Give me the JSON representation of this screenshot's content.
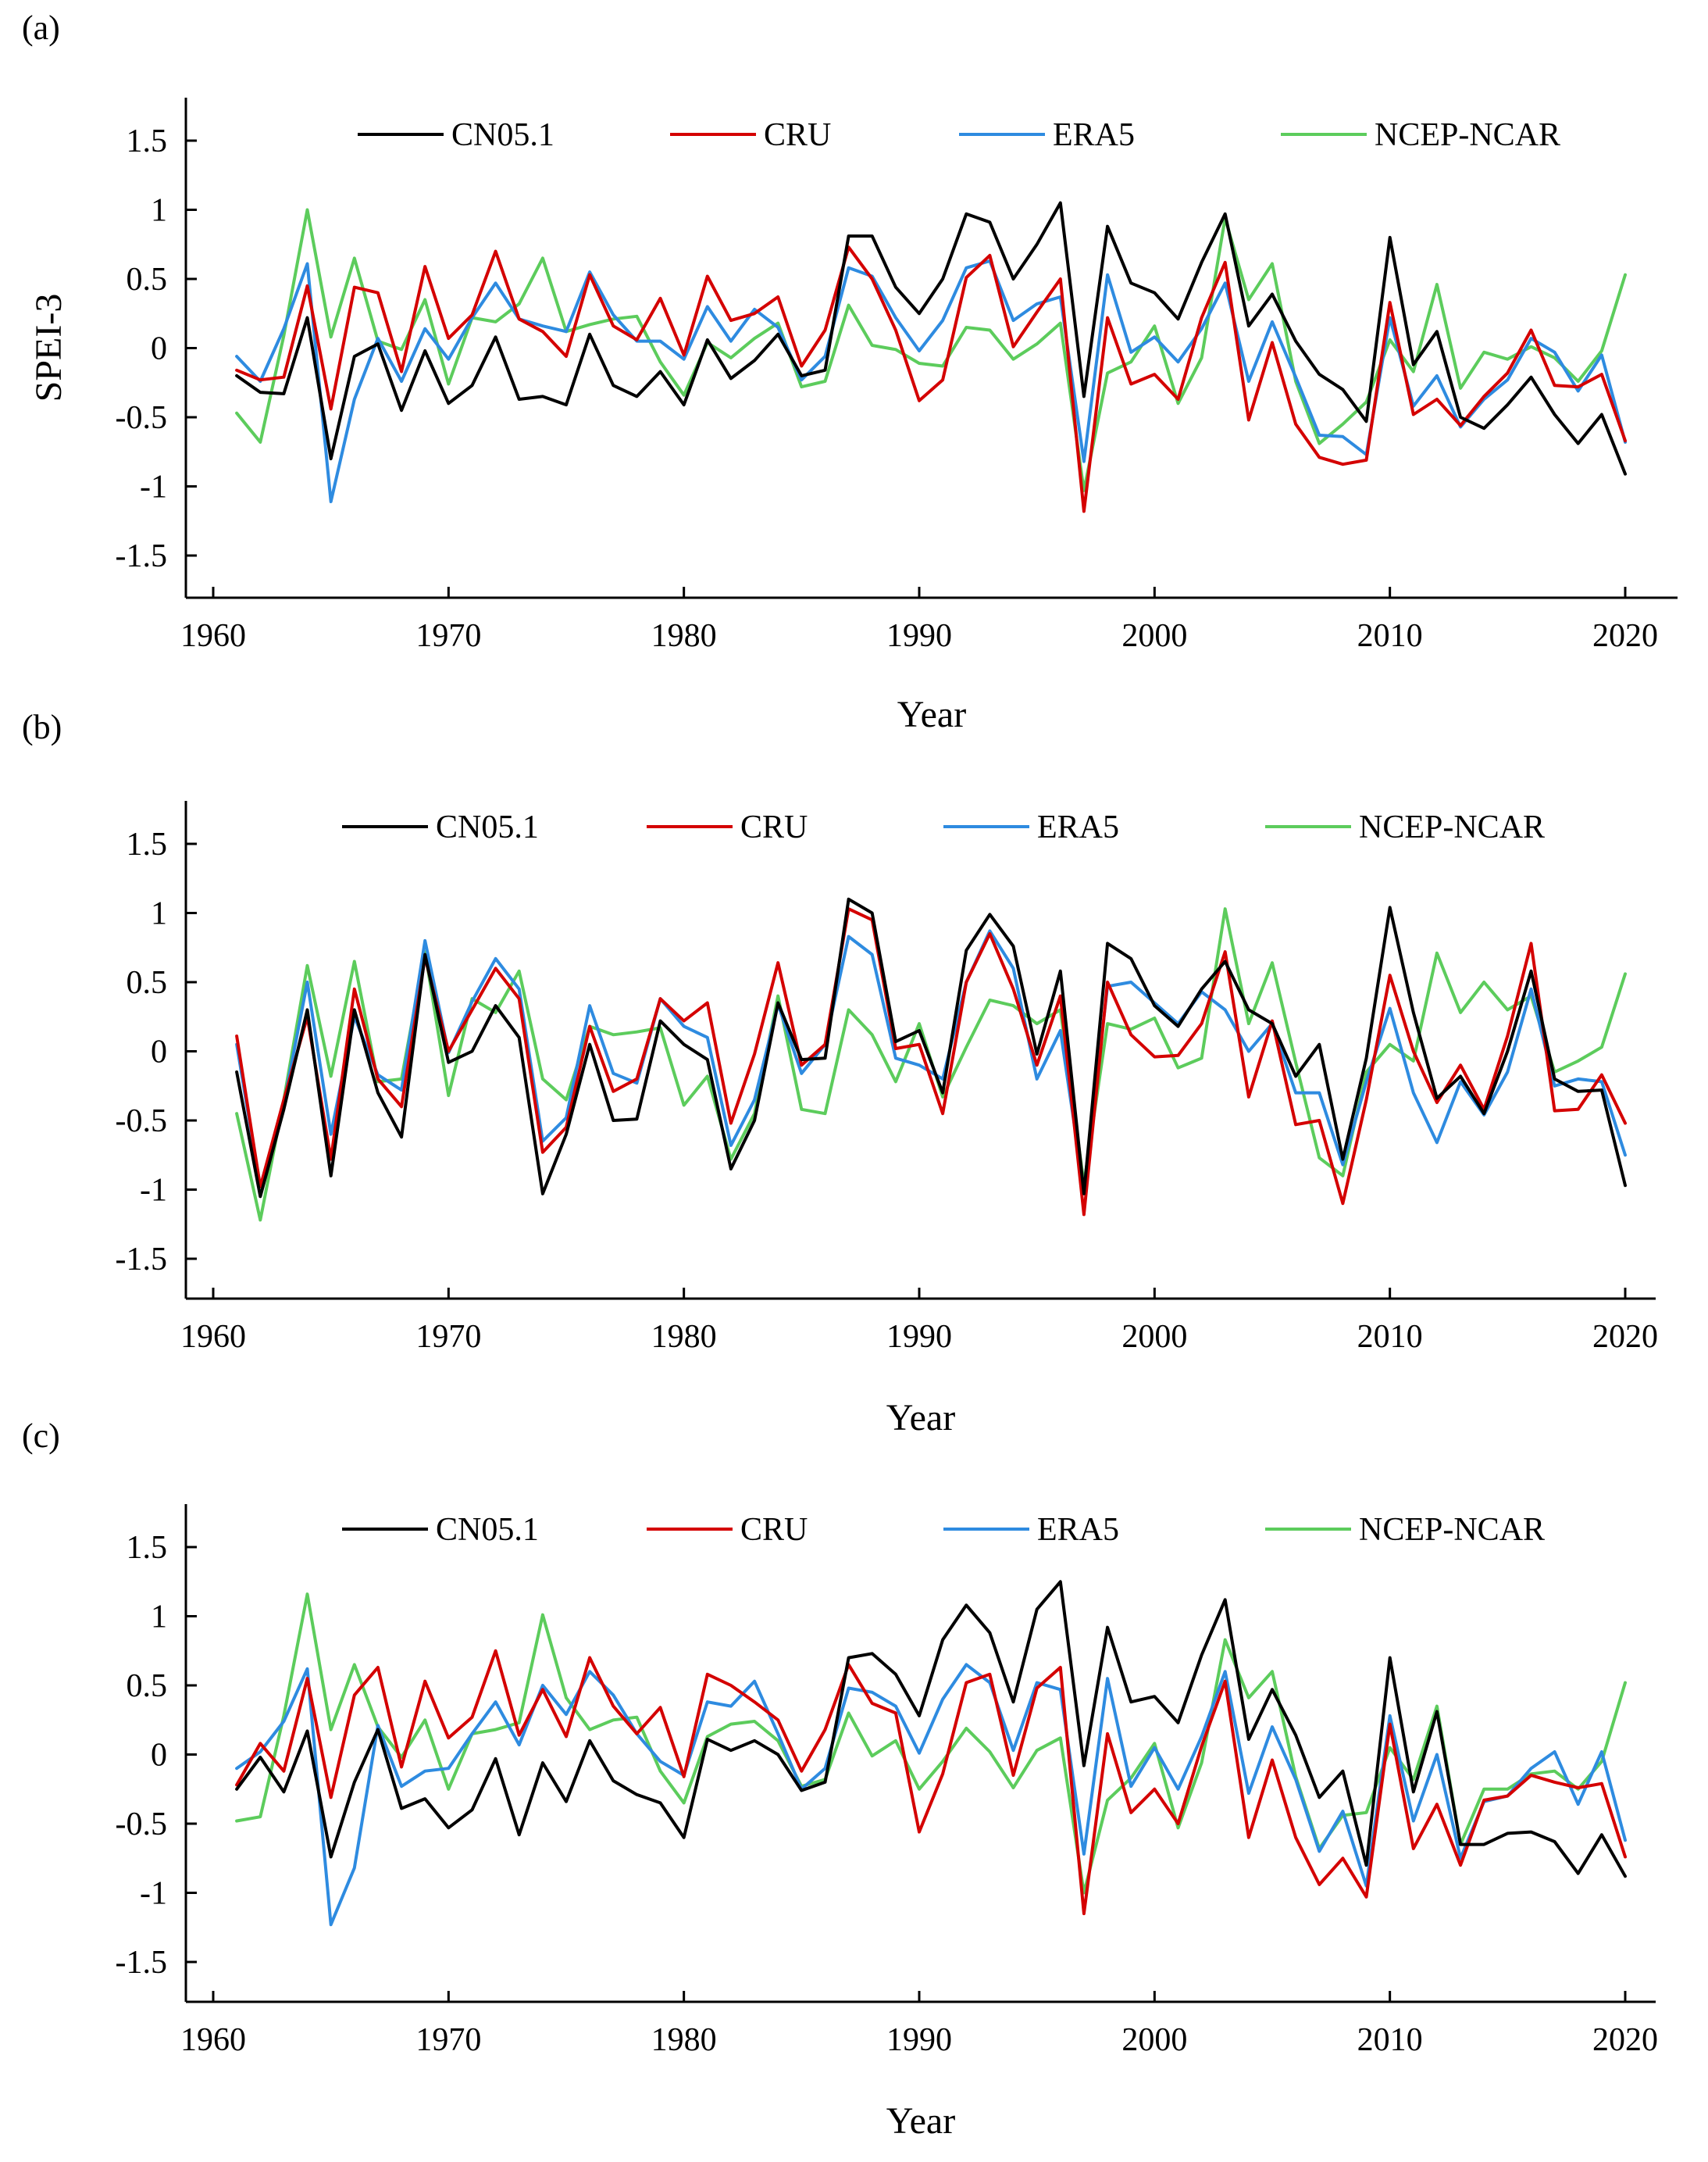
{
  "figure": {
    "ylabel": "SPEI-3",
    "series_colors": {
      "CN05.1": "#000000",
      "CRU": "#d40000",
      "ERA5": "#2e8be0",
      "NCEP-NCAR": "#5ccc5c"
    }
  },
  "chart_data": [
    {
      "panel": "(a)",
      "type": "line",
      "xlabel": "Year",
      "ylabel": "SPEI-3",
      "xlim": [
        1958,
        2022
      ],
      "ylim": [
        -1.8,
        1.8
      ],
      "xticks": [
        "1960",
        "1970",
        "1980",
        "1990",
        "2000",
        "2010",
        "2020"
      ],
      "yticks": [
        "1.5",
        "1",
        "0.5",
        "0",
        "-0.5",
        "-1",
        "-1.5"
      ],
      "yticks_values": [
        1.5,
        1,
        0.5,
        0,
        -0.5,
        -1,
        -1.5
      ],
      "x_start": 1961,
      "series": [
        {
          "name": "CN05.1",
          "values": [
            -0.2,
            -0.32,
            -0.33,
            0.22,
            -0.8,
            -0.06,
            0.03,
            -0.45,
            -0.02,
            -0.4,
            -0.27,
            0.08,
            -0.37,
            -0.35,
            -0.41,
            0.1,
            -0.27,
            -0.35,
            -0.17,
            -0.41,
            0.06,
            -0.22,
            -0.09,
            0.1,
            -0.2,
            -0.16,
            0.81,
            0.81,
            0.44,
            0.25,
            0.5,
            0.97,
            0.91,
            0.5,
            0.75,
            1.05,
            -0.35,
            0.88,
            0.47,
            0.4,
            0.21,
            0.62,
            0.97,
            0.16,
            0.39,
            0.05,
            -0.19,
            -0.3,
            -0.53,
            0.8,
            -0.12,
            0.12,
            -0.5,
            -0.58,
            -0.41,
            -0.21,
            -0.48,
            -0.69,
            -0.48,
            -0.91
          ]
        },
        {
          "name": "CRU",
          "values": [
            -0.16,
            -0.23,
            -0.21,
            0.45,
            -0.44,
            0.44,
            0.4,
            -0.17,
            0.59,
            0.07,
            0.24,
            0.7,
            0.21,
            0.12,
            -0.06,
            0.53,
            0.16,
            0.06,
            0.36,
            -0.05,
            0.52,
            0.2,
            0.25,
            0.37,
            -0.13,
            0.13,
            0.73,
            0.5,
            0.13,
            -0.38,
            -0.23,
            0.51,
            0.67,
            0.01,
            0.26,
            0.5,
            -1.18,
            0.22,
            -0.26,
            -0.19,
            -0.37,
            0.22,
            0.62,
            -0.52,
            0.04,
            -0.55,
            -0.79,
            -0.84,
            -0.81,
            0.33,
            -0.48,
            -0.37,
            -0.56,
            -0.35,
            -0.18,
            0.13,
            -0.27,
            -0.28,
            -0.19,
            -0.67
          ]
        },
        {
          "name": "ERA5",
          "values": [
            -0.06,
            -0.24,
            0.14,
            0.61,
            -1.11,
            -0.37,
            0.07,
            -0.24,
            0.14,
            -0.08,
            0.22,
            0.47,
            0.21,
            0.16,
            0.12,
            0.55,
            0.24,
            0.05,
            0.05,
            -0.08,
            0.3,
            0.05,
            0.28,
            0.15,
            -0.23,
            -0.06,
            0.58,
            0.52,
            0.22,
            -0.02,
            0.2,
            0.58,
            0.63,
            0.2,
            0.32,
            0.37,
            -0.82,
            0.53,
            -0.03,
            0.08,
            -0.1,
            0.14,
            0.47,
            -0.24,
            0.19,
            -0.21,
            -0.63,
            -0.64,
            -0.77,
            0.22,
            -0.42,
            -0.2,
            -0.57,
            -0.37,
            -0.23,
            0.07,
            -0.03,
            -0.31,
            -0.05,
            -0.68
          ]
        },
        {
          "name": "NCEP-NCAR",
          "values": [
            -0.47,
            -0.68,
            0.09,
            1.0,
            0.08,
            0.65,
            0.05,
            -0.01,
            0.35,
            -0.26,
            0.22,
            0.19,
            0.32,
            0.65,
            0.12,
            0.17,
            0.21,
            0.23,
            -0.1,
            -0.34,
            0.04,
            -0.07,
            0.07,
            0.18,
            -0.28,
            -0.24,
            0.31,
            0.02,
            -0.01,
            -0.11,
            -0.13,
            0.15,
            0.13,
            -0.08,
            0.03,
            0.18,
            -1.03,
            -0.18,
            -0.1,
            0.16,
            -0.4,
            -0.07,
            0.94,
            0.35,
            0.61,
            -0.24,
            -0.69,
            -0.55,
            -0.39,
            0.06,
            -0.17,
            0.46,
            -0.29,
            -0.03,
            -0.08,
            0.01,
            -0.07,
            -0.24,
            -0.02,
            0.53
          ]
        }
      ]
    },
    {
      "panel": "(b)",
      "type": "line",
      "xlabel": "Year",
      "ylabel": "",
      "xlim": [
        1958,
        2022
      ],
      "ylim": [
        -1.8,
        1.8
      ],
      "xticks": [
        "1960",
        "1970",
        "1980",
        "1990",
        "2000",
        "2010",
        "2020"
      ],
      "yticks": [
        "1.5",
        "1",
        "0.5",
        "0",
        "-0.5",
        "-1",
        "-1.5"
      ],
      "yticks_values": [
        1.5,
        1,
        0.5,
        0,
        -0.5,
        -1,
        -1.5
      ],
      "x_start": 1961,
      "series": [
        {
          "name": "CN05.1",
          "values": [
            -0.15,
            -1.05,
            -0.42,
            0.3,
            -0.9,
            0.3,
            -0.3,
            -0.62,
            0.7,
            -0.08,
            0.0,
            0.33,
            0.1,
            -1.03,
            -0.6,
            0.05,
            -0.5,
            -0.49,
            0.22,
            0.05,
            -0.06,
            -0.85,
            -0.5,
            0.35,
            -0.06,
            -0.05,
            1.1,
            1.0,
            0.07,
            0.15,
            -0.3,
            0.73,
            0.99,
            0.76,
            -0.02,
            0.58,
            -1.03,
            0.78,
            0.67,
            0.33,
            0.18,
            0.45,
            0.65,
            0.3,
            0.2,
            -0.18,
            0.05,
            -0.78,
            -0.05,
            1.04,
            0.28,
            -0.34,
            -0.18,
            -0.45,
            0.0,
            0.58,
            -0.2,
            -0.29,
            -0.28,
            -0.97
          ]
        },
        {
          "name": "CRU",
          "values": [
            0.11,
            -0.98,
            -0.35,
            0.25,
            -0.78,
            0.45,
            -0.2,
            -0.4,
            0.68,
            0.0,
            0.3,
            0.6,
            0.38,
            -0.73,
            -0.55,
            0.18,
            -0.29,
            -0.2,
            0.38,
            0.22,
            0.35,
            -0.52,
            -0.02,
            0.64,
            -0.1,
            0.05,
            1.03,
            0.95,
            0.02,
            0.05,
            -0.45,
            0.5,
            0.85,
            0.45,
            -0.1,
            0.4,
            -1.18,
            0.5,
            0.12,
            -0.04,
            -0.03,
            0.2,
            0.72,
            -0.33,
            0.22,
            -0.53,
            -0.5,
            -1.1,
            -0.35,
            0.55,
            0.0,
            -0.37,
            -0.1,
            -0.42,
            0.11,
            0.78,
            -0.43,
            -0.42,
            -0.17,
            -0.52
          ]
        },
        {
          "name": "ERA5",
          "values": [
            0.05,
            -0.98,
            -0.38,
            0.5,
            -0.6,
            0.25,
            -0.17,
            -0.28,
            0.8,
            -0.01,
            0.36,
            0.67,
            0.45,
            -0.65,
            -0.48,
            0.33,
            -0.16,
            -0.23,
            0.38,
            0.18,
            0.1,
            -0.68,
            -0.35,
            0.34,
            -0.16,
            0.05,
            0.83,
            0.7,
            -0.05,
            -0.1,
            -0.2,
            0.5,
            0.87,
            0.6,
            -0.2,
            0.15,
            -1.0,
            0.47,
            0.5,
            0.35,
            0.2,
            0.43,
            0.3,
            0.0,
            0.2,
            -0.3,
            -0.3,
            -0.82,
            -0.22,
            0.31,
            -0.3,
            -0.66,
            -0.22,
            -0.46,
            -0.15,
            0.45,
            -0.25,
            -0.2,
            -0.22,
            -0.75
          ]
        },
        {
          "name": "NCEP-NCAR",
          "values": [
            -0.45,
            -1.22,
            -0.35,
            0.62,
            -0.18,
            0.65,
            -0.22,
            -0.2,
            0.72,
            -0.32,
            0.38,
            0.28,
            0.58,
            -0.2,
            -0.35,
            0.18,
            0.12,
            0.14,
            0.17,
            -0.39,
            -0.18,
            -0.78,
            -0.45,
            0.4,
            -0.42,
            -0.45,
            0.3,
            0.12,
            -0.22,
            0.2,
            -0.33,
            0.03,
            0.37,
            0.33,
            0.2,
            0.3,
            -0.96,
            0.2,
            0.16,
            0.24,
            -0.12,
            -0.05,
            1.03,
            0.2,
            0.64,
            -0.08,
            -0.77,
            -0.9,
            -0.15,
            0.05,
            -0.07,
            0.71,
            0.28,
            0.5,
            0.3,
            0.4,
            -0.15,
            -0.07,
            0.03,
            0.56
          ]
        }
      ]
    },
    {
      "panel": "(c)",
      "type": "line",
      "xlabel": "Year",
      "ylabel": "",
      "xlim": [
        1958,
        2022
      ],
      "ylim": [
        -1.8,
        1.8
      ],
      "xticks": [
        "1960",
        "1970",
        "1980",
        "1990",
        "2000",
        "2010",
        "2020"
      ],
      "yticks": [
        "1.5",
        "1",
        "0.5",
        "0",
        "-0.5",
        "-1",
        "-1.5"
      ],
      "yticks_values": [
        1.5,
        1,
        0.5,
        0,
        -0.5,
        -1,
        -1.5
      ],
      "x_start": 1961,
      "series": [
        {
          "name": "CN05.1",
          "values": [
            -0.25,
            -0.02,
            -0.27,
            0.17,
            -0.74,
            -0.2,
            0.18,
            -0.39,
            -0.32,
            -0.53,
            -0.4,
            -0.03,
            -0.58,
            -0.06,
            -0.34,
            0.1,
            -0.19,
            -0.29,
            -0.35,
            -0.6,
            0.11,
            0.03,
            0.1,
            0.0,
            -0.26,
            -0.2,
            0.7,
            0.73,
            0.58,
            0.28,
            0.83,
            1.08,
            0.88,
            0.38,
            1.05,
            1.25,
            -0.08,
            0.92,
            0.38,
            0.42,
            0.23,
            0.72,
            1.12,
            0.11,
            0.47,
            0.14,
            -0.31,
            -0.12,
            -0.8,
            0.7,
            -0.27,
            0.31,
            -0.65,
            -0.65,
            -0.57,
            -0.56,
            -0.63,
            -0.86,
            -0.58,
            -0.88
          ]
        },
        {
          "name": "CRU",
          "values": [
            -0.22,
            0.08,
            -0.12,
            0.55,
            -0.31,
            0.43,
            0.63,
            -0.09,
            0.53,
            0.12,
            0.27,
            0.75,
            0.14,
            0.47,
            0.13,
            0.7,
            0.35,
            0.15,
            0.34,
            -0.16,
            0.58,
            0.5,
            0.38,
            0.25,
            -0.12,
            0.18,
            0.65,
            0.37,
            0.3,
            -0.56,
            -0.14,
            0.52,
            0.58,
            -0.15,
            0.48,
            0.63,
            -1.15,
            0.15,
            -0.42,
            -0.25,
            -0.5,
            0.06,
            0.53,
            -0.6,
            -0.04,
            -0.6,
            -0.94,
            -0.75,
            -1.03,
            0.22,
            -0.68,
            -0.36,
            -0.8,
            -0.33,
            -0.3,
            -0.15,
            -0.2,
            -0.24,
            -0.21,
            -0.74
          ]
        },
        {
          "name": "ERA5",
          "values": [
            -0.1,
            0.02,
            0.24,
            0.62,
            -1.23,
            -0.82,
            0.21,
            -0.23,
            -0.12,
            -0.1,
            0.15,
            0.38,
            0.07,
            0.5,
            0.29,
            0.6,
            0.43,
            0.15,
            -0.05,
            -0.15,
            0.38,
            0.35,
            0.53,
            0.15,
            -0.25,
            -0.1,
            0.48,
            0.45,
            0.35,
            0.01,
            0.4,
            0.65,
            0.52,
            0.03,
            0.52,
            0.47,
            -0.72,
            0.55,
            -0.23,
            0.05,
            -0.25,
            0.13,
            0.6,
            -0.28,
            0.2,
            -0.18,
            -0.7,
            -0.41,
            -0.95,
            0.28,
            -0.48,
            0.0,
            -0.75,
            -0.34,
            -0.3,
            -0.1,
            0.02,
            -0.36,
            0.02,
            -0.62
          ]
        },
        {
          "name": "NCEP-NCAR",
          "values": [
            -0.48,
            -0.45,
            0.28,
            1.16,
            0.18,
            0.65,
            0.2,
            -0.02,
            0.25,
            -0.25,
            0.15,
            0.18,
            0.23,
            1.01,
            0.41,
            0.18,
            0.25,
            0.27,
            -0.12,
            -0.35,
            0.13,
            0.22,
            0.24,
            0.1,
            -0.23,
            -0.18,
            0.3,
            -0.01,
            0.1,
            -0.25,
            -0.05,
            0.19,
            0.02,
            -0.24,
            0.03,
            0.12,
            -1.0,
            -0.33,
            -0.17,
            0.08,
            -0.53,
            -0.06,
            0.83,
            0.41,
            0.6,
            -0.16,
            -0.68,
            -0.44,
            -0.42,
            0.05,
            -0.18,
            0.35,
            -0.65,
            -0.25,
            -0.25,
            -0.14,
            -0.12,
            -0.25,
            -0.05,
            0.52
          ]
        }
      ]
    }
  ]
}
